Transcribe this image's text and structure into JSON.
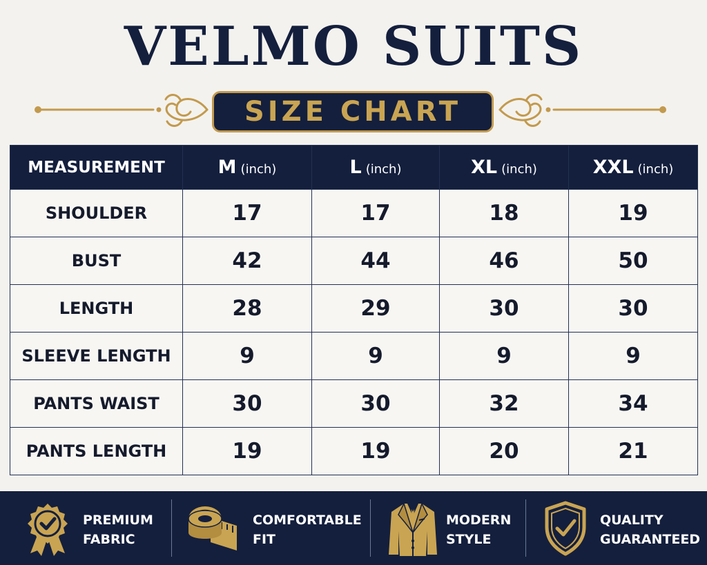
{
  "brand": {
    "name": "VELMO SUITS"
  },
  "badge": {
    "label": "SIZE CHART"
  },
  "table": {
    "headers": [
      {
        "label": "MEASUREMENT",
        "unit": ""
      },
      {
        "label": "M",
        "unit": "(inch)"
      },
      {
        "label": "L",
        "unit": "(inch)"
      },
      {
        "label": "XL",
        "unit": "(inch)"
      },
      {
        "label": "XXL",
        "unit": "(inch)"
      }
    ],
    "rows": [
      {
        "label": "SHOULDER",
        "values": [
          "17",
          "17",
          "18",
          "19"
        ]
      },
      {
        "label": "BUST",
        "values": [
          "42",
          "44",
          "46",
          "50"
        ]
      },
      {
        "label": "LENGTH",
        "values": [
          "28",
          "29",
          "30",
          "30"
        ]
      },
      {
        "label": "SLEEVE LENGTH",
        "values": [
          "9",
          "9",
          "9",
          "9"
        ]
      },
      {
        "label": "PANTS WAIST",
        "values": [
          "30",
          "30",
          "32",
          "34"
        ]
      },
      {
        "label": "PANTS LENGTH",
        "values": [
          "19",
          "19",
          "20",
          "21"
        ]
      }
    ]
  },
  "features": [
    {
      "icon": "award-badge-icon",
      "line1": "PREMIUM",
      "line2": "FABRIC"
    },
    {
      "icon": "tape-measure-icon",
      "line1": "COMFORTABLE",
      "line2": "FIT"
    },
    {
      "icon": "suit-jacket-icon",
      "line1": "MODERN",
      "line2": "STYLE"
    },
    {
      "icon": "shield-check-icon",
      "line1": "QUALITY",
      "line2": "GUARANTEED"
    }
  ],
  "colors": {
    "navy": "#141f3d",
    "gold": "#c9a452",
    "background": "#f4f2ee"
  }
}
